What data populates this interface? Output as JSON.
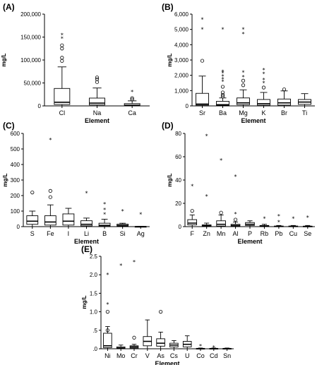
{
  "chart_data": [
    {
      "type": "boxplot",
      "panel_label": "(A)",
      "ylabel": "mg/L",
      "xlabel": "Element",
      "ylim": [
        0,
        200000
      ],
      "yticks": [
        0,
        50000,
        100000,
        150000,
        200000
      ],
      "ytick_labels": [
        "0",
        "50,000",
        "100,000",
        "150,000",
        "200,000"
      ],
      "categories": [
        "Cl",
        "Na",
        "Ca"
      ],
      "boxes": [
        {
          "min": 0,
          "q1": 3000,
          "median": 8000,
          "q3": 38000,
          "max": 85000,
          "circles": [
            98000,
            105000,
            125000,
            132000
          ],
          "stars": [
            147000,
            155000
          ]
        },
        {
          "min": 0,
          "q1": 2000,
          "median": 6000,
          "q3": 17000,
          "max": 39000,
          "circles": [
            52000,
            58000,
            62000
          ],
          "stars": []
        },
        {
          "min": 0,
          "q1": 500,
          "median": 1500,
          "q3": 5000,
          "max": 11000,
          "circles": [
            14000,
            17000
          ],
          "stars": [
            31000
          ]
        }
      ]
    },
    {
      "type": "boxplot",
      "panel_label": "(B)",
      "ylabel": "mg/L",
      "xlabel": "Element",
      "ylim": [
        0,
        6000
      ],
      "yticks": [
        0,
        1000,
        2000,
        3000,
        4000,
        5000,
        6000
      ],
      "ytick_labels": [
        "0",
        "1,000",
        "2,000",
        "3,000",
        "4,000",
        "5,000",
        "6,000"
      ],
      "categories": [
        "Sr",
        "Ba",
        "Mg",
        "K",
        "Br",
        "Ti"
      ],
      "boxes": [
        {
          "min": 0,
          "q1": 50,
          "median": 120,
          "q3": 820,
          "max": 1950,
          "circles": [
            2950
          ],
          "stars": [
            5000,
            5650
          ]
        },
        {
          "min": 0,
          "q1": 30,
          "median": 80,
          "q3": 300,
          "max": 520,
          "circles": [
            620,
            720,
            880,
            1250
          ],
          "stars": [
            1600,
            1750,
            1950,
            2150,
            2250,
            5000
          ]
        },
        {
          "min": 0,
          "q1": 80,
          "median": 200,
          "q3": 520,
          "max": 1050,
          "circles": [
            1350,
            1650
          ],
          "stars": [
            1900,
            2200,
            4700,
            5000
          ]
        },
        {
          "min": 0,
          "q1": 50,
          "median": 150,
          "q3": 420,
          "max": 880,
          "circles": [
            1200
          ],
          "stars": [
            1500,
            1700,
            2100,
            2350
          ]
        },
        {
          "min": 0,
          "q1": 50,
          "median": 200,
          "q3": 450,
          "max": 980,
          "circles": [
            1080
          ],
          "stars": []
        },
        {
          "min": 0,
          "q1": 100,
          "median": 250,
          "q3": 420,
          "max": 800,
          "circles": [],
          "stars": []
        }
      ]
    },
    {
      "type": "boxplot",
      "panel_label": "(C)",
      "ylabel": "mg/L",
      "xlabel": "Element",
      "ylim": [
        0,
        600
      ],
      "yticks": [
        0,
        100,
        200,
        300,
        400,
        500,
        600
      ],
      "ytick_labels": [
        "0",
        "100",
        "200",
        "300",
        "400",
        "500",
        "600"
      ],
      "categories": [
        "S",
        "Fe",
        "I",
        "Li",
        "B",
        "Si",
        "Ag"
      ],
      "boxes": [
        {
          "min": 0,
          "q1": 15,
          "median": 35,
          "q3": 70,
          "max": 100,
          "circles": [
            220
          ],
          "stars": []
        },
        {
          "min": 0,
          "q1": 10,
          "median": 30,
          "q3": 70,
          "max": 140,
          "circles": [
            190,
            230
          ],
          "stars": [
            560
          ]
        },
        {
          "min": 0,
          "q1": 10,
          "median": 35,
          "q3": 82,
          "max": 118,
          "circles": [],
          "stars": []
        },
        {
          "min": 0,
          "q1": 5,
          "median": 15,
          "q3": 38,
          "max": 55,
          "circles": [],
          "stars": [
            215
          ]
        },
        {
          "min": 0,
          "q1": 2,
          "median": 8,
          "q3": 22,
          "max": 48,
          "circles": [],
          "stars": [
            80,
            110,
            145
          ]
        },
        {
          "min": 0,
          "q1": 3,
          "median": 8,
          "q3": 16,
          "max": 22,
          "circles": [],
          "stars": [
            100
          ]
        },
        {
          "min": 0,
          "q1": 0,
          "median": 0.5,
          "q3": 1,
          "max": 2,
          "circles": [],
          "stars": [
            80
          ]
        }
      ]
    },
    {
      "type": "boxplot",
      "panel_label": "(D)",
      "ylabel": "mg/L",
      "xlabel": "Element",
      "ylim": [
        0,
        80
      ],
      "yticks": [
        0,
        20,
        40,
        60,
        80
      ],
      "ytick_labels": [
        "0",
        "20",
        "40",
        "60",
        "80"
      ],
      "categories": [
        "F",
        "Zn",
        "Mn",
        "Al",
        "P",
        "Rb",
        "Pb",
        "Cu",
        "Se"
      ],
      "boxes": [
        {
          "min": 0,
          "q1": 1.5,
          "median": 3,
          "q3": 6,
          "max": 10,
          "circles": [
            13.5
          ],
          "stars": [
            35
          ]
        },
        {
          "min": 0,
          "q1": 0.3,
          "median": 0.8,
          "q3": 1.5,
          "max": 3,
          "circles": [],
          "stars": [
            26,
            78
          ]
        },
        {
          "min": 0,
          "q1": 0.5,
          "median": 2,
          "q3": 5,
          "max": 10,
          "circles": [
            12
          ],
          "stars": [
            57
          ]
        },
        {
          "min": 0,
          "q1": 0.3,
          "median": 1,
          "q3": 2,
          "max": 4,
          "circles": [
            6
          ],
          "stars": [
            11,
            43
          ]
        },
        {
          "min": 0,
          "q1": 1,
          "median": 2,
          "q3": 3.5,
          "max": 5,
          "circles": [],
          "stars": []
        },
        {
          "min": 0,
          "q1": 0.2,
          "median": 0.5,
          "q3": 1,
          "max": 2,
          "circles": [],
          "stars": [
            7
          ]
        },
        {
          "min": 0,
          "q1": 0.1,
          "median": 0.2,
          "q3": 0.5,
          "max": 1,
          "circles": [],
          "stars": [
            4,
            9
          ]
        },
        {
          "min": 0,
          "q1": 0.1,
          "median": 0.2,
          "q3": 0.5,
          "max": 1,
          "circles": [],
          "stars": [
            7
          ]
        },
        {
          "min": 0,
          "q1": 0.1,
          "median": 0.2,
          "q3": 0.4,
          "max": 1,
          "circles": [],
          "stars": [
            8
          ]
        }
      ]
    },
    {
      "type": "boxplot",
      "panel_label": "(E)",
      "ylabel": "mg/L",
      "xlabel": "Element",
      "ylim": [
        0,
        2.5
      ],
      "yticks": [
        0,
        0.5,
        1.0,
        1.5,
        2.0,
        2.5
      ],
      "ytick_labels": [
        ".0",
        ".5",
        "1.0",
        "1.5",
        "2.0",
        "2.5"
      ],
      "categories": [
        "Ni",
        "Mo",
        "Cr",
        "V",
        "As",
        "Cs",
        "U",
        "Co",
        "Cd",
        "Sn"
      ],
      "boxes": [
        {
          "min": 0,
          "q1": 0.03,
          "median": 0.08,
          "q3": 0.42,
          "max": 0.6,
          "circles": [
            0.5,
            1.0
          ],
          "stars": [
            1.2,
            2.0
          ]
        },
        {
          "min": 0,
          "q1": 0.01,
          "median": 0.02,
          "q3": 0.05,
          "max": 0.1,
          "circles": [],
          "stars": [
            2.25
          ]
        },
        {
          "min": 0,
          "q1": 0.02,
          "median": 0.05,
          "q3": 0.08,
          "max": 0.12,
          "circles": [
            0.3
          ],
          "stars": [
            2.35
          ]
        },
        {
          "min": 0,
          "q1": 0.08,
          "median": 0.2,
          "q3": 0.33,
          "max": 0.78,
          "circles": [],
          "stars": []
        },
        {
          "min": 0,
          "q1": 0.07,
          "median": 0.15,
          "q3": 0.27,
          "max": 0.45,
          "circles": [
            1.0
          ],
          "stars": []
        },
        {
          "min": 0,
          "q1": 0.05,
          "median": 0.1,
          "q3": 0.15,
          "max": 0.22,
          "circles": [],
          "stars": []
        },
        {
          "min": 0,
          "q1": 0.05,
          "median": 0.12,
          "q3": 0.2,
          "max": 0.35,
          "circles": [],
          "stars": []
        },
        {
          "min": 0,
          "q1": 0,
          "median": 0.005,
          "q3": 0.01,
          "max": 0.02,
          "circles": [],
          "stars": [
            0.08
          ]
        },
        {
          "min": 0,
          "q1": 0,
          "median": 0.005,
          "q3": 0.01,
          "max": 0.02,
          "circles": [],
          "stars": [
            0.04
          ]
        },
        {
          "min": 0,
          "q1": 0,
          "median": 0.005,
          "q3": 0.01,
          "max": 0.02,
          "circles": [],
          "stars": []
        }
      ]
    }
  ]
}
